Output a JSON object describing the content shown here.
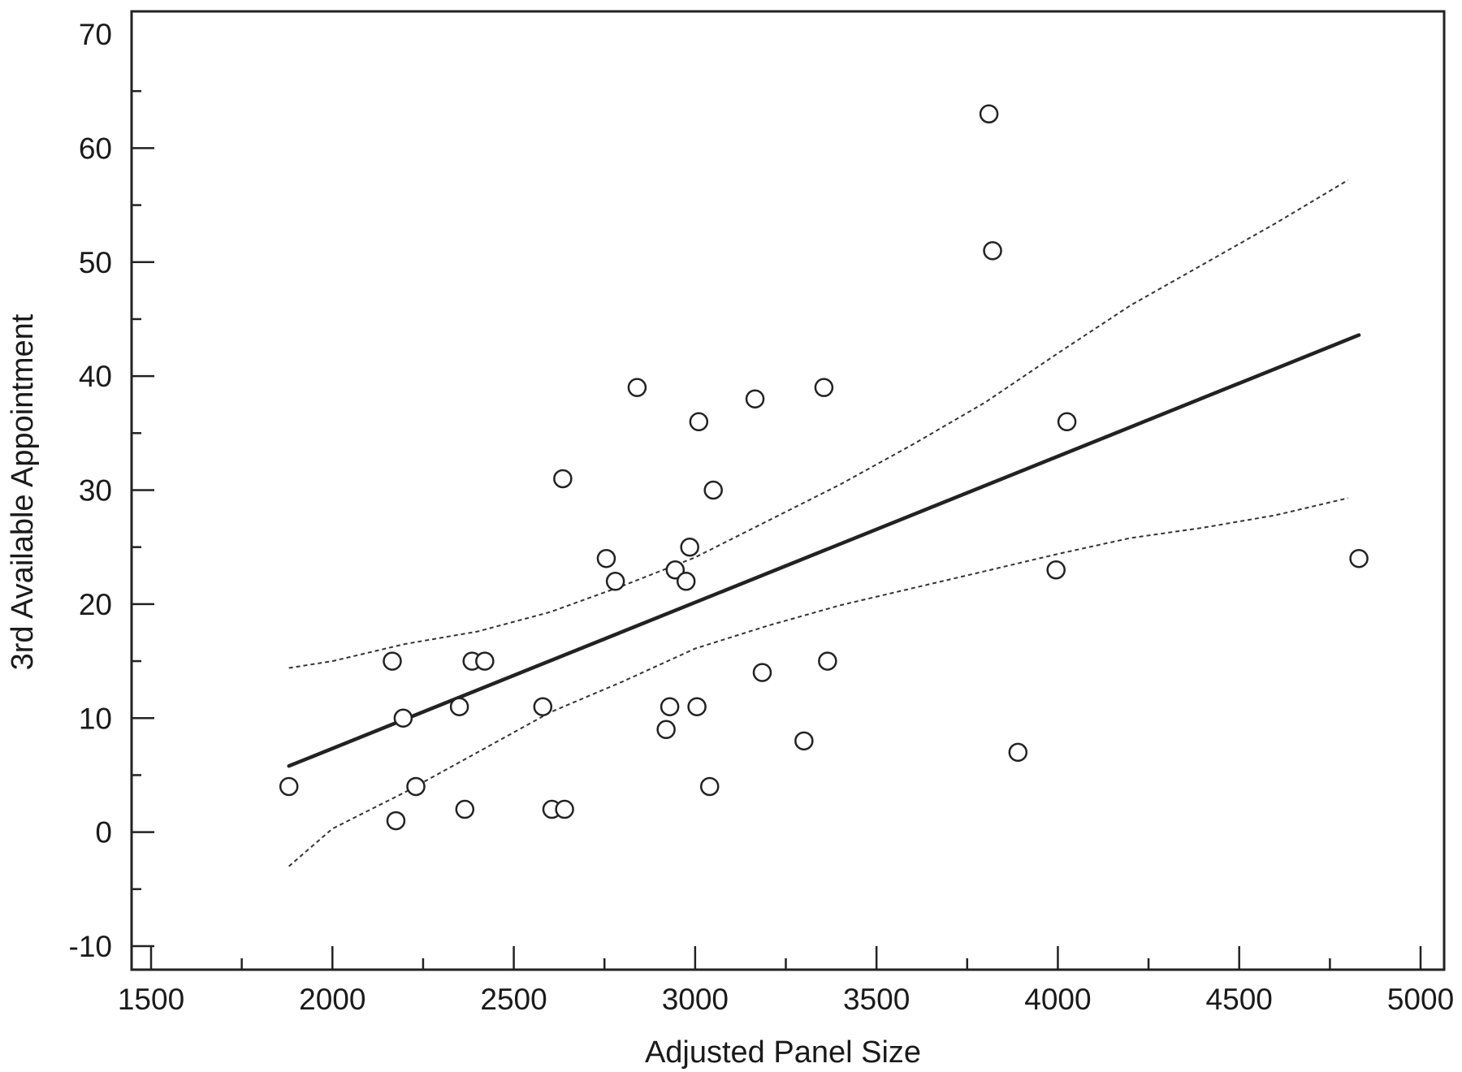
{
  "chart_data": {
    "type": "scatter",
    "title": "",
    "xlabel": "Adjusted Panel Size",
    "ylabel": "3rd Available Appointment",
    "xlim": [
      1500,
      5000
    ],
    "ylim": [
      -12,
      72
    ],
    "x_ticks": [
      1500,
      2000,
      2500,
      3000,
      3500,
      4000,
      4500,
      5000
    ],
    "y_ticks": [
      -10,
      0,
      10,
      20,
      30,
      40,
      50,
      60,
      70
    ],
    "x_tick_labels": [
      "1500",
      "2000",
      "2500",
      "3000",
      "3500",
      "4000",
      "4500",
      "5000"
    ],
    "y_tick_labels": [
      "-10",
      "0",
      "10",
      "20",
      "30",
      "40",
      "50",
      "60",
      "70"
    ],
    "grid": false,
    "colors": {
      "points": "#222222",
      "regression": "#222222",
      "confidence": "#333333",
      "frame": "#222222"
    },
    "points": [
      {
        "x": 1880,
        "y": 4
      },
      {
        "x": 2165,
        "y": 15
      },
      {
        "x": 2175,
        "y": 1
      },
      {
        "x": 2195,
        "y": 10
      },
      {
        "x": 2230,
        "y": 4
      },
      {
        "x": 2350,
        "y": 11
      },
      {
        "x": 2365,
        "y": 2
      },
      {
        "x": 2385,
        "y": 15
      },
      {
        "x": 2420,
        "y": 15
      },
      {
        "x": 2580,
        "y": 11
      },
      {
        "x": 2605,
        "y": 2
      },
      {
        "x": 2640,
        "y": 2
      },
      {
        "x": 2635,
        "y": 31
      },
      {
        "x": 2755,
        "y": 24
      },
      {
        "x": 2780,
        "y": 22
      },
      {
        "x": 2840,
        "y": 39
      },
      {
        "x": 2920,
        "y": 9
      },
      {
        "x": 2930,
        "y": 11
      },
      {
        "x": 2945,
        "y": 23
      },
      {
        "x": 2975,
        "y": 22
      },
      {
        "x": 2985,
        "y": 25
      },
      {
        "x": 3005,
        "y": 11
      },
      {
        "x": 3010,
        "y": 36
      },
      {
        "x": 3040,
        "y": 4
      },
      {
        "x": 3050,
        "y": 30
      },
      {
        "x": 3165,
        "y": 38
      },
      {
        "x": 3185,
        "y": 14
      },
      {
        "x": 3300,
        "y": 8
      },
      {
        "x": 3355,
        "y": 39
      },
      {
        "x": 3365,
        "y": 15
      },
      {
        "x": 3810,
        "y": 63
      },
      {
        "x": 3820,
        "y": 51
      },
      {
        "x": 3890,
        "y": 7
      },
      {
        "x": 3995,
        "y": 23
      },
      {
        "x": 4025,
        "y": 36
      },
      {
        "x": 4830,
        "y": 24
      }
    ],
    "regression_line": [
      {
        "x": 1880,
        "y": 5.8
      },
      {
        "x": 4830,
        "y": 43.6
      }
    ],
    "confidence_upper": [
      {
        "x": 1880,
        "y": 14.4
      },
      {
        "x": 2000,
        "y": 15
      },
      {
        "x": 2200,
        "y": 16.5
      },
      {
        "x": 2400,
        "y": 17.6
      },
      {
        "x": 2600,
        "y": 19.3
      },
      {
        "x": 2800,
        "y": 21.6
      },
      {
        "x": 3000,
        "y": 24.1
      },
      {
        "x": 3200,
        "y": 27.3
      },
      {
        "x": 3400,
        "y": 30.5
      },
      {
        "x": 3600,
        "y": 34
      },
      {
        "x": 3800,
        "y": 37.7
      },
      {
        "x": 4000,
        "y": 42
      },
      {
        "x": 4200,
        "y": 46.2
      },
      {
        "x": 4400,
        "y": 49.8
      },
      {
        "x": 4600,
        "y": 53.4
      },
      {
        "x": 4800,
        "y": 57.2
      }
    ],
    "confidence_lower": [
      {
        "x": 1880,
        "y": -3
      },
      {
        "x": 2000,
        "y": 0.3
      },
      {
        "x": 2200,
        "y": 3.5
      },
      {
        "x": 2400,
        "y": 7
      },
      {
        "x": 2600,
        "y": 10.5
      },
      {
        "x": 2800,
        "y": 13.2
      },
      {
        "x": 3000,
        "y": 16.1
      },
      {
        "x": 3200,
        "y": 18.1
      },
      {
        "x": 3400,
        "y": 19.9
      },
      {
        "x": 3600,
        "y": 21.4
      },
      {
        "x": 3800,
        "y": 22.9
      },
      {
        "x": 4000,
        "y": 24.4
      },
      {
        "x": 4200,
        "y": 25.8
      },
      {
        "x": 4400,
        "y": 26.7
      },
      {
        "x": 4600,
        "y": 27.8
      },
      {
        "x": 4800,
        "y": 29.3
      }
    ]
  }
}
